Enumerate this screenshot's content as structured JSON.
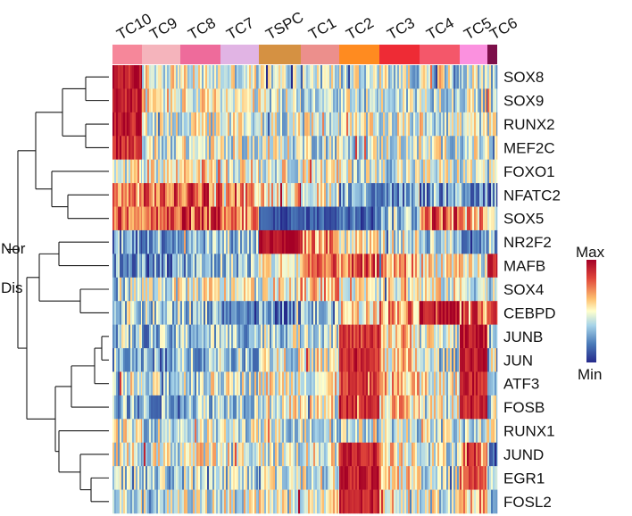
{
  "chart_data": {
    "type": "heatmap",
    "title": "",
    "clusters": [
      "TC10",
      "TC9",
      "TC8",
      "TC7",
      "TSPC",
      "TC1",
      "TC2",
      "TC3",
      "TC4",
      "TC5",
      "TC6"
    ],
    "cluster_colors": [
      "#f6879a",
      "#f5b4bc",
      "#ee6b9b",
      "#e1b4e4",
      "#d59142",
      "#ec8f8c",
      "#ff8b20",
      "#ee2b35",
      "#f4576a",
      "#fb91df",
      "#7d0f4a"
    ],
    "genes": [
      "SOX8",
      "SOX9",
      "RUNX2",
      "MEF2C",
      "FOXO1",
      "NFATC2",
      "SOX5",
      "NR2F2",
      "MAFB",
      "SOX4",
      "CEBPD",
      "JUNB",
      "JUN",
      "ATF3",
      "FOSB",
      "RUNX1",
      "JUND",
      "EGR1",
      "FOSL2"
    ],
    "row_groups": [
      "Nor",
      "Dis"
    ],
    "scale": {
      "max_label": "Max",
      "min_label": "Min",
      "colors": [
        "#a50026",
        "#e0453a",
        "#fdbf6f",
        "#ffffcc",
        "#a6d3e8",
        "#4a7ab8",
        "#262a8c"
      ]
    },
    "values_note": "relative scaled expression per gene (0 = Min, 1 = Max), mean per cluster",
    "values": [
      [
        0.92,
        0.5,
        0.45,
        0.45,
        0.42,
        0.43,
        0.41,
        0.42,
        0.42,
        0.43,
        0.42
      ],
      [
        0.92,
        0.52,
        0.48,
        0.45,
        0.42,
        0.43,
        0.41,
        0.42,
        0.43,
        0.43,
        0.42
      ],
      [
        0.92,
        0.46,
        0.45,
        0.45,
        0.44,
        0.44,
        0.43,
        0.45,
        0.45,
        0.44,
        0.44
      ],
      [
        0.85,
        0.46,
        0.45,
        0.45,
        0.44,
        0.43,
        0.42,
        0.45,
        0.44,
        0.43,
        0.43
      ],
      [
        0.43,
        0.52,
        0.6,
        0.52,
        0.48,
        0.48,
        0.44,
        0.43,
        0.44,
        0.44,
        0.43
      ],
      [
        0.72,
        0.75,
        0.8,
        0.68,
        0.6,
        0.5,
        0.28,
        0.22,
        0.22,
        0.24,
        0.2
      ],
      [
        0.8,
        0.78,
        0.8,
        0.7,
        0.1,
        0.12,
        0.18,
        0.35,
        0.8,
        0.65,
        0.35
      ],
      [
        0.25,
        0.28,
        0.35,
        0.35,
        0.95,
        0.7,
        0.5,
        0.45,
        0.38,
        0.25,
        0.3
      ],
      [
        0.25,
        0.22,
        0.3,
        0.35,
        0.5,
        0.7,
        0.75,
        0.65,
        0.55,
        0.45,
        0.9
      ],
      [
        0.42,
        0.45,
        0.48,
        0.48,
        0.5,
        0.6,
        0.55,
        0.5,
        0.48,
        0.45,
        0.45
      ],
      [
        0.4,
        0.35,
        0.35,
        0.18,
        0.2,
        0.3,
        0.55,
        0.7,
        0.95,
        0.75,
        0.88
      ],
      [
        0.35,
        0.3,
        0.35,
        0.35,
        0.4,
        0.45,
        0.85,
        0.6,
        0.45,
        0.95,
        0.4
      ],
      [
        0.3,
        0.25,
        0.35,
        0.35,
        0.45,
        0.45,
        0.88,
        0.55,
        0.4,
        0.95,
        0.4
      ],
      [
        0.38,
        0.38,
        0.45,
        0.45,
        0.5,
        0.5,
        0.85,
        0.6,
        0.48,
        0.9,
        0.42
      ],
      [
        0.3,
        0.28,
        0.38,
        0.4,
        0.48,
        0.5,
        0.9,
        0.6,
        0.45,
        0.92,
        0.4
      ],
      [
        0.45,
        0.42,
        0.42,
        0.42,
        0.42,
        0.42,
        0.42,
        0.42,
        0.42,
        0.42,
        0.42
      ],
      [
        0.45,
        0.45,
        0.5,
        0.48,
        0.45,
        0.48,
        0.9,
        0.55,
        0.45,
        0.7,
        0.2
      ],
      [
        0.35,
        0.35,
        0.4,
        0.4,
        0.45,
        0.45,
        0.92,
        0.55,
        0.45,
        0.82,
        0.35
      ],
      [
        0.4,
        0.4,
        0.45,
        0.45,
        0.48,
        0.48,
        0.9,
        0.55,
        0.48,
        0.65,
        0.4
      ]
    ]
  }
}
